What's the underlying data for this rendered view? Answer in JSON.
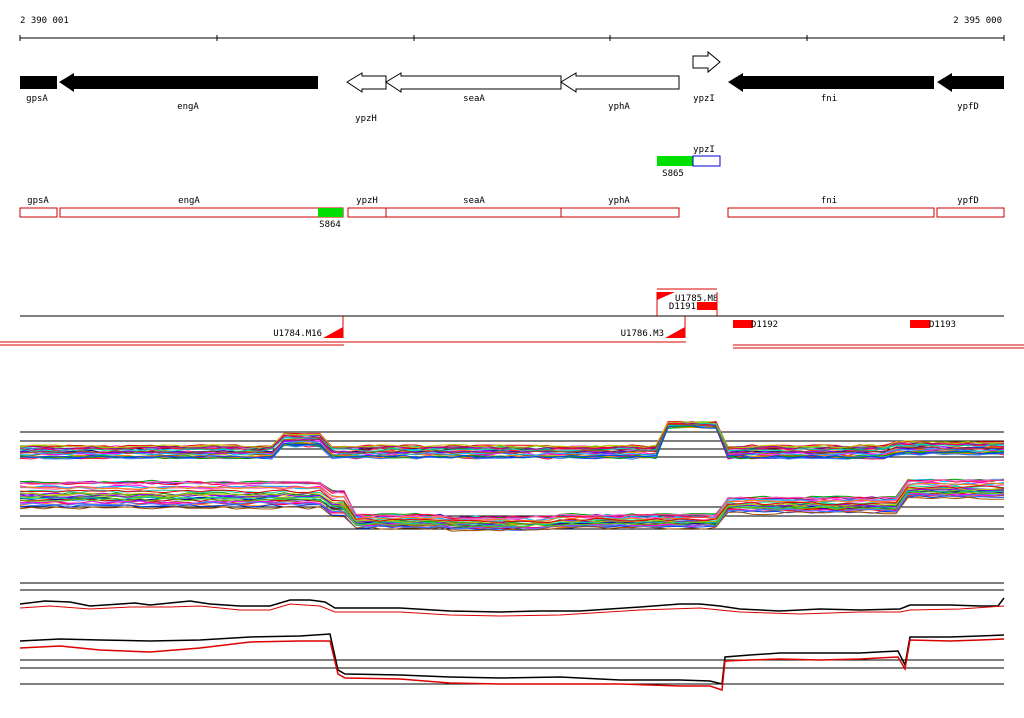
{
  "ruler": {
    "start_label": "2 390 001",
    "end_label": "2 395 000"
  },
  "genes": [
    {
      "name": "gpsA",
      "strand": "-",
      "filled": true,
      "start": 2390001,
      "end": 2390190
    },
    {
      "name": "engA",
      "strand": "-",
      "filled": true,
      "start": 2390200,
      "end": 2391505
    },
    {
      "name": "ypzH",
      "strand": "-",
      "filled": false,
      "start": 2391655,
      "end": 2391855
    },
    {
      "name": "seaA",
      "strand": "-",
      "filled": false,
      "start": 2391855,
      "end": 2392740
    },
    {
      "name": "yphA",
      "strand": "-",
      "filled": false,
      "start": 2392740,
      "end": 2393345
    },
    {
      "name": "ypzI",
      "strand": "+",
      "filled": false,
      "start": 2393375,
      "end": 2393510
    },
    {
      "name": "fni",
      "strand": "-",
      "filled": true,
      "start": 2393590,
      "end": 2394640
    },
    {
      "name": "ypfD",
      "strand": "-",
      "filled": true,
      "start": 2394650,
      "end": 2395000
    }
  ],
  "operons": [
    {
      "name": "gpsA",
      "start": 2390001,
      "end": 2390190
    },
    {
      "name": "engA",
      "start": 2390200,
      "end": 2391505
    },
    {
      "name": "ypzH",
      "start": 2391655,
      "end": 2391855
    },
    {
      "name": "seaA",
      "start": 2391855,
      "end": 2392740
    },
    {
      "name": "yphA",
      "start": 2392740,
      "end": 2393345
    },
    {
      "name": "ypzI",
      "start": 2393375,
      "end": 2393510
    },
    {
      "name": "fni",
      "start": 2393590,
      "end": 2394640
    },
    {
      "name": "ypfD",
      "start": 2394650,
      "end": 2395000
    }
  ],
  "sigma_sites": [
    {
      "label": "S864",
      "start": 2391505,
      "end": 2391625
    },
    {
      "label": "S865",
      "start": 2393240,
      "end": 2393375
    }
  ],
  "transcription_units": [
    {
      "label": "U1784.M16"
    },
    {
      "label": "U1786.M3"
    },
    {
      "label": "U1785.M8"
    },
    {
      "label": "D1191"
    },
    {
      "label": "D1192"
    },
    {
      "label": "D1193"
    }
  ],
  "colors": {
    "gene_fill": "#000000",
    "operon_box": "#cc0000",
    "sigma_site": "#00e000",
    "tu_marker": "#ff0000",
    "ypzI_box": "#0000cc",
    "profile_black": "#000000",
    "profile_red": "#dd0000"
  }
}
